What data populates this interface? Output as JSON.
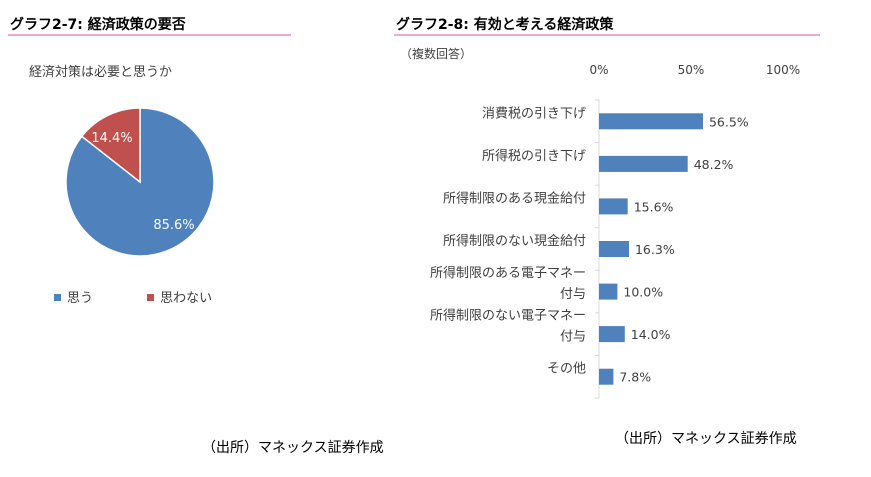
{
  "chart_data": [
    {
      "type": "pie",
      "title": "グラフ2-7: 経済政策の要否",
      "subtitle": "経済対策は必要と思うか",
      "categories": [
        "思う",
        "思わない"
      ],
      "values": [
        85.6,
        14.4
      ],
      "labels": [
        "85.6%",
        "14.4%"
      ],
      "colors": [
        "#4f81bd",
        "#c0504d"
      ],
      "legend": "bottom",
      "source": "（出所）マネックス証券作成"
    },
    {
      "type": "bar",
      "orientation": "horizontal",
      "title": "グラフ2-8: 有効と考える経済政策",
      "subtitle": "（複数回答）",
      "categories": [
        [
          "消費税の引き下げ"
        ],
        [
          "所得税の引き下げ"
        ],
        [
          "所得制限のある現金給付"
        ],
        [
          "所得制限のない現金給付"
        ],
        [
          "所得制限のある電子マネー",
          "付与"
        ],
        [
          "所得制限のない電子マネー",
          "付与"
        ],
        [
          "その他"
        ]
      ],
      "values": [
        56.5,
        48.2,
        15.6,
        16.3,
        10.0,
        14.0,
        7.8
      ],
      "labels": [
        "56.5%",
        "48.2%",
        "15.6%",
        "16.3%",
        "10.0%",
        "14.0%",
        "7.8%"
      ],
      "xlim": [
        0,
        100
      ],
      "ticks": [
        0,
        50,
        100
      ],
      "tick_labels": [
        "0%",
        "50%",
        "100%"
      ],
      "bar_color": "#4f81bd",
      "source": "（出所）マネックス証券作成"
    }
  ]
}
